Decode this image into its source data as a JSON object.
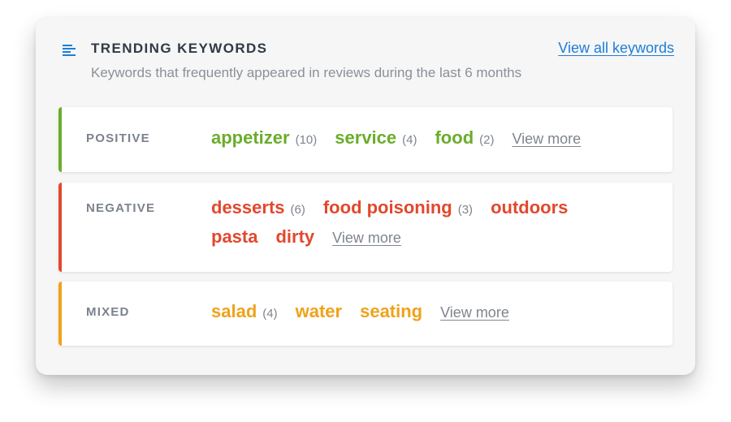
{
  "header": {
    "icon": "list-lines-icon",
    "title": "TRENDING KEYWORDS",
    "subtitle": "Keywords that frequently appeared in reviews during the last 6 months",
    "view_all_label": "View all keywords"
  },
  "colors": {
    "positive": "#6aad2b",
    "negative": "#e2482d",
    "mixed": "#efa21a",
    "link": "#1d7ed8"
  },
  "groups": [
    {
      "label": "POSITIVE",
      "sentiment": "positive",
      "keywords": [
        {
          "word": "appetizer",
          "count": "(10)"
        },
        {
          "word": "service",
          "count": "(4)"
        },
        {
          "word": "food",
          "count": "(2)"
        }
      ],
      "view_more_label": "View more"
    },
    {
      "label": "NEGATIVE",
      "sentiment": "negative",
      "keywords": [
        {
          "word": "desserts",
          "count": "(6)"
        },
        {
          "word": "food poisoning",
          "count": "(3)"
        },
        {
          "word": "outdoors",
          "count": ""
        },
        {
          "word": "pasta",
          "count": ""
        },
        {
          "word": "dirty",
          "count": ""
        }
      ],
      "view_more_label": "View more"
    },
    {
      "label": "MIXED",
      "sentiment": "mixed",
      "keywords": [
        {
          "word": "salad",
          "count": "(4)"
        },
        {
          "word": "water",
          "count": ""
        },
        {
          "word": "seating",
          "count": ""
        }
      ],
      "view_more_label": "View more"
    }
  ]
}
